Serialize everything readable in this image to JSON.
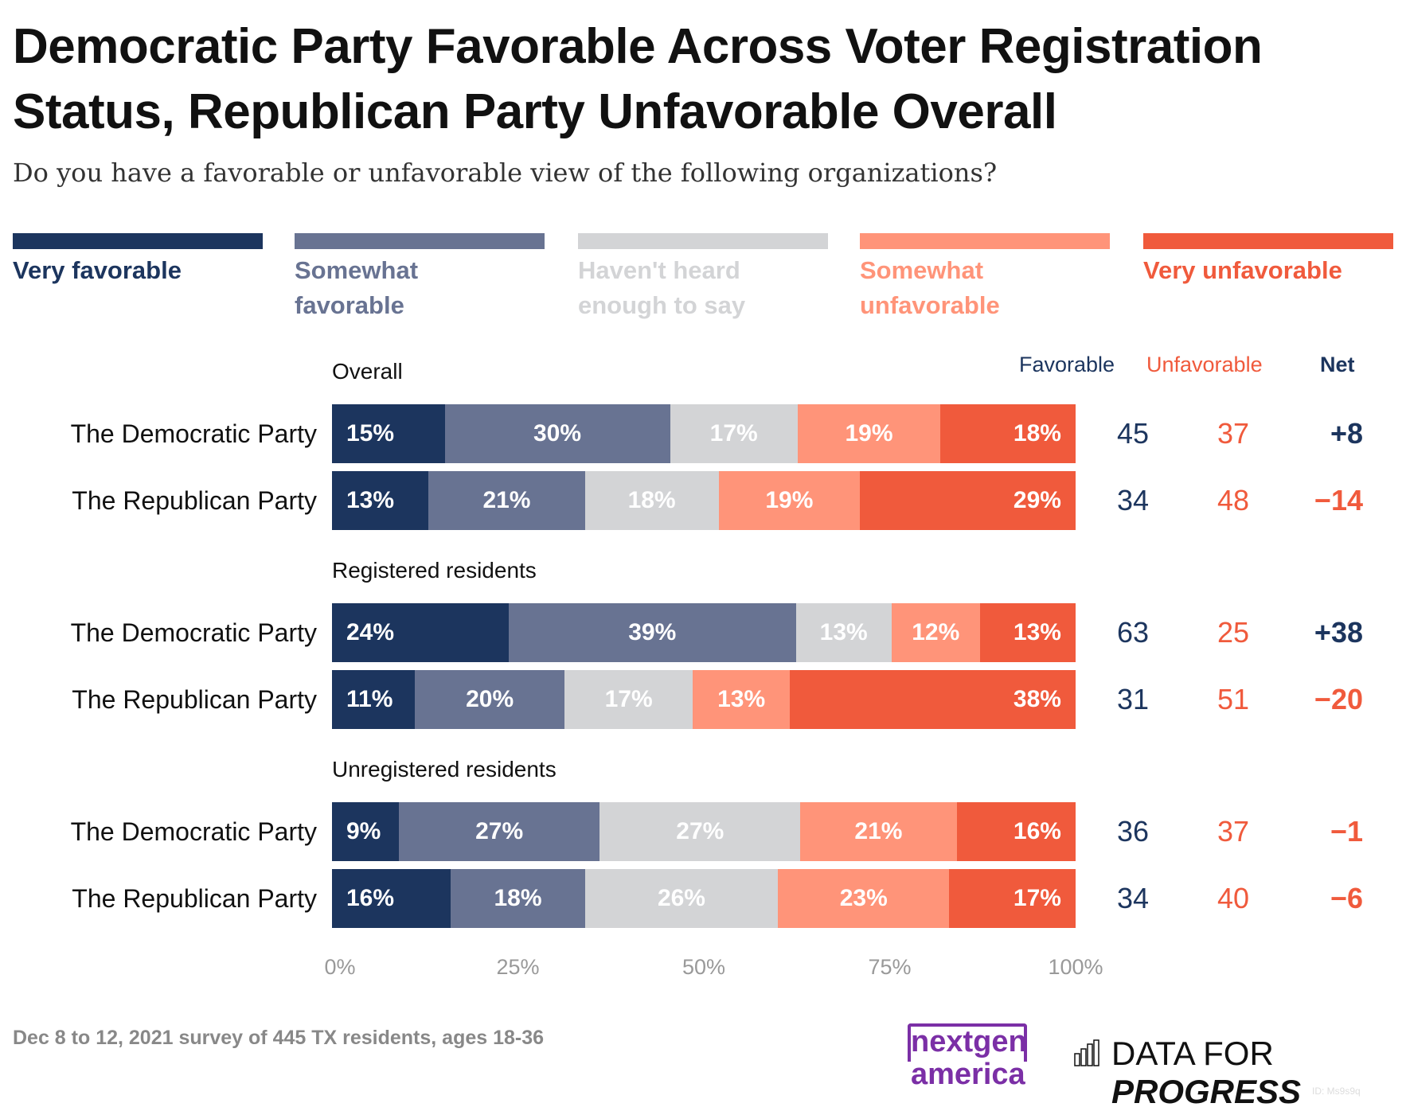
{
  "title": "Democratic Party Favorable Across Voter Registration Status, Republican Party Unfavorable Overall",
  "subtitle": "Do you have a favorable or unfavorable view of the following organizations?",
  "footer": "Dec 8 to 12, 2021 survey of 445 TX residents, ages 18-36",
  "logos": {
    "nextgen_line1": "nextgen",
    "nextgen_line2": "america",
    "dfp_regular": "DATA FOR",
    "dfp_bold": "PROGRESS",
    "id": "ID: Ms9s9q"
  },
  "colors": {
    "very_favorable": "#1c355e",
    "somewhat_favorable": "#687392",
    "havent_heard": "#d3d4d6",
    "somewhat_unfavorable": "#ff9479",
    "very_unfavorable": "#f05a3c"
  },
  "chart_data": {
    "type": "bar",
    "orientation": "horizontal-stacked-100",
    "title": "Democratic Party Favorable Across Voter Registration Status, Republican Party Unfavorable Overall",
    "legend_placement": "top",
    "legend": [
      "Very favorable",
      "Somewhat favorable",
      "Haven't heard enough to say",
      "Somewhat unfavorable",
      "Very unfavorable"
    ],
    "legend_lines": [
      [
        "Very favorable"
      ],
      [
        "Somewhat",
        "favorable"
      ],
      [
        "Haven't heard",
        "enough to say"
      ],
      [
        "Somewhat",
        "unfavorable"
      ],
      [
        "Very unfavorable"
      ]
    ],
    "column_headers": {
      "favorable": "Favorable",
      "unfavorable": "Unfavorable",
      "net": "Net"
    },
    "xlim": [
      0,
      100
    ],
    "x_ticks": [
      "0%",
      "25%",
      "50%",
      "75%",
      "100%"
    ],
    "groups": [
      {
        "label": "Overall",
        "rows": [
          {
            "label": "The Democratic Party",
            "values": [
              15,
              30,
              17,
              19,
              18
            ],
            "favorable": "45",
            "unfavorable": "37",
            "net": "+8"
          },
          {
            "label": "The Republican Party",
            "values": [
              13,
              21,
              18,
              19,
              29
            ],
            "favorable": "34",
            "unfavorable": "48",
            "net": "−14"
          }
        ]
      },
      {
        "label": "Registered residents",
        "rows": [
          {
            "label": "The Democratic Party",
            "values": [
              24,
              39,
              13,
              12,
              13
            ],
            "favorable": "63",
            "unfavorable": "25",
            "net": "+38"
          },
          {
            "label": "The Republican Party",
            "values": [
              11,
              20,
              17,
              13,
              38
            ],
            "favorable": "31",
            "unfavorable": "51",
            "net": "−20"
          }
        ]
      },
      {
        "label": "Unregistered residents",
        "rows": [
          {
            "label": "The Democratic Party",
            "values": [
              9,
              27,
              27,
              21,
              16
            ],
            "favorable": "36",
            "unfavorable": "37",
            "net": "−1"
          },
          {
            "label": "The Republican Party",
            "values": [
              16,
              18,
              26,
              23,
              17
            ],
            "favorable": "34",
            "unfavorable": "40",
            "net": "−6"
          }
        ]
      }
    ]
  }
}
